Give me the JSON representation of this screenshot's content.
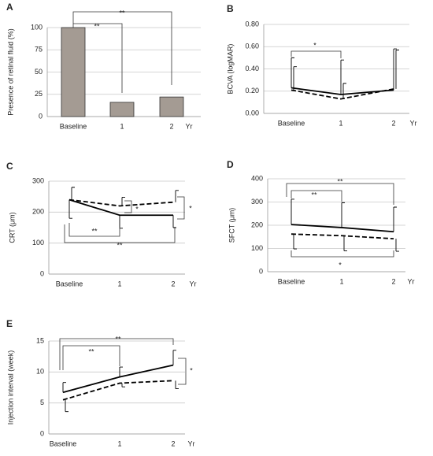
{
  "chart_data": [
    {
      "type": "bar",
      "label": "A",
      "ylabel": "Presence of retinal fluid (%)",
      "xlabel": "Yr",
      "categories": [
        "Baseline",
        "1",
        "2"
      ],
      "values": [
        100,
        16,
        22
      ],
      "color": "#a49b93",
      "ylim": [
        0,
        100
      ],
      "yticks": [
        0,
        25,
        50,
        75,
        100
      ],
      "grid": true,
      "annotations": [
        "**",
        "**"
      ]
    },
    {
      "type": "line",
      "label": "B",
      "ylabel": "BCVA (logMAR)",
      "xlabel": "Yr",
      "categories": [
        "Baseline",
        "1",
        "2"
      ],
      "series": [
        {
          "color": "#000000",
          "dash": false,
          "values": [
            0.23,
            0.17,
            0.21
          ],
          "errors": [
            0.27,
            0.31,
            0.37
          ],
          "error_direction": "up"
        },
        {
          "color": "#000000",
          "dash": true,
          "values": [
            0.21,
            0.13,
            0.22
          ],
          "errors": [
            0.21,
            0.14,
            0.35
          ],
          "error_direction": "up"
        }
      ],
      "ylim": [
        0,
        0.8
      ],
      "yticks": [
        {
          "value": 0,
          "label": "0.00"
        },
        {
          "value": 0.2,
          "label": "0.20"
        },
        {
          "value": 0.4,
          "label": "0.40"
        },
        {
          "value": 0.6,
          "label": "0.60"
        },
        {
          "value": 0.8,
          "label": "0.80"
        }
      ],
      "grid": true,
      "annotations": [
        "*"
      ]
    },
    {
      "type": "line",
      "label": "C",
      "ylabel": "CRT (μm)",
      "xlabel": "Yr",
      "categories": [
        "Baseline",
        "1",
        "2"
      ],
      "series": [
        {
          "color": "#000000",
          "dash": false,
          "values": [
            240,
            190,
            190
          ],
          "errors": [
            60,
            42,
            40
          ],
          "error_direction": "down"
        },
        {
          "color": "#000000",
          "dash": true,
          "values": [
            240,
            220,
            232
          ],
          "errors": [
            40,
            28,
            38
          ],
          "error_direction": "up"
        }
      ],
      "ylim": [
        0,
        300
      ],
      "yticks": [
        0,
        100,
        200,
        300
      ],
      "grid": true,
      "annotations": [
        "**",
        "**",
        "*",
        "*"
      ]
    },
    {
      "type": "line",
      "label": "D",
      "ylabel": "SFCT (μm)",
      "xlabel": "Yr",
      "categories": [
        "Baseline",
        "1",
        "2"
      ],
      "series": [
        {
          "color": "#000000",
          "dash": false,
          "values": [
            203,
            190,
            172
          ],
          "errors": [
            109,
            107,
            106
          ],
          "error_direction": "up"
        },
        {
          "color": "#000000",
          "dash": true,
          "values": [
            162,
            155,
            142
          ],
          "errors": [
            64,
            65,
            54
          ],
          "error_direction": "down"
        }
      ],
      "ylim": [
        0,
        400
      ],
      "yticks": [
        0,
        100,
        200,
        300,
        400
      ],
      "grid": true,
      "annotations": [
        "**",
        "**",
        "*"
      ]
    },
    {
      "type": "line",
      "label": "E",
      "ylabel": "Injection interval (week)",
      "xlabel": "Yr",
      "categories": [
        "Baseline",
        "1",
        "2"
      ],
      "series": [
        {
          "color": "#000000",
          "dash": false,
          "values": [
            6.7,
            9.2,
            11.1
          ],
          "errors": [
            1.6,
            1.6,
            2.4
          ],
          "error_direction": "up"
        },
        {
          "color": "#000000",
          "dash": true,
          "values": [
            5.5,
            8.2,
            8.6
          ],
          "errors": [
            1.9,
            0.6,
            1.3
          ],
          "error_direction": "down"
        }
      ],
      "ylim": [
        0,
        15
      ],
      "yticks": [
        0,
        5,
        10,
        15
      ],
      "grid": true,
      "annotations": [
        "**",
        "**",
        "*"
      ]
    }
  ]
}
